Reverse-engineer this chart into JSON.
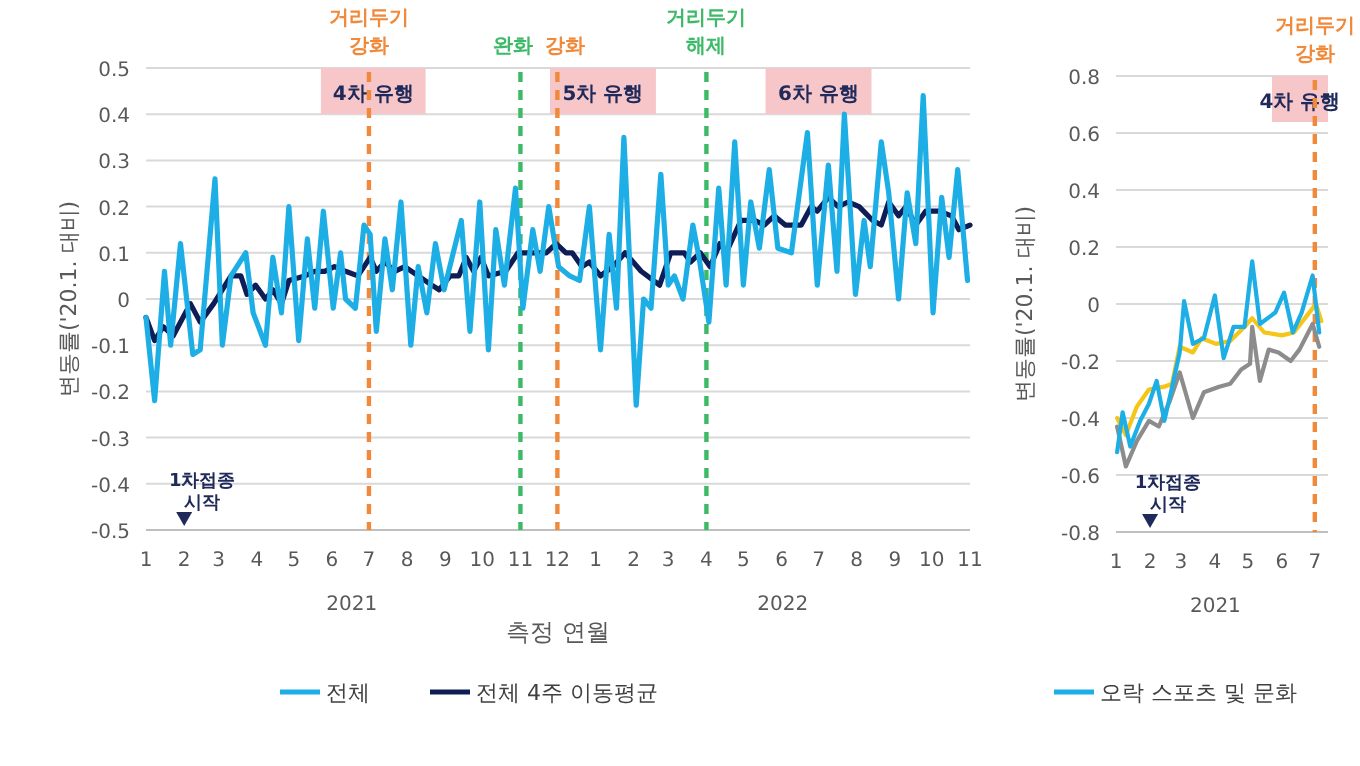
{
  "chart_data": [
    {
      "type": "line",
      "xlabel": "측정 연월",
      "ylabel": "변동률('20.1. 대비)",
      "xlim": [
        "2021-01-01",
        "2022-11-01"
      ],
      "ylim": [
        -0.5,
        0.5
      ],
      "xticks": [
        {
          "value": "2021-01",
          "label": "1"
        },
        {
          "value": "2021-02",
          "label": "2"
        },
        {
          "value": "2021-03",
          "label": "3"
        },
        {
          "value": "2021-04",
          "label": "4"
        },
        {
          "value": "2021-05",
          "label": "5"
        },
        {
          "value": "2021-06",
          "label": "6"
        },
        {
          "value": "2021-07",
          "label": "7"
        },
        {
          "value": "2021-08",
          "label": "8"
        },
        {
          "value": "2021-09",
          "label": "9"
        },
        {
          "value": "2021-10",
          "label": "10"
        },
        {
          "value": "2021-11",
          "label": "11"
        },
        {
          "value": "2021-12",
          "label": "12"
        },
        {
          "value": "2022-01",
          "label": "1"
        },
        {
          "value": "2022-02",
          "label": "2"
        },
        {
          "value": "2022-03",
          "label": "3"
        },
        {
          "value": "2022-04",
          "label": "4"
        },
        {
          "value": "2022-05",
          "label": "5"
        },
        {
          "value": "2022-06",
          "label": "6"
        },
        {
          "value": "2022-07",
          "label": "7"
        },
        {
          "value": "2022-08",
          "label": "8"
        },
        {
          "value": "2022-09",
          "label": "9"
        },
        {
          "value": "2022-10",
          "label": "10"
        },
        {
          "value": "2022-11",
          "label": "11"
        }
      ],
      "yticks": [
        -0.5,
        -0.4,
        -0.3,
        -0.2,
        -0.1,
        0,
        0.1,
        0.2,
        0.3,
        0.4,
        0.5
      ],
      "grid": "y",
      "legend": "bottom",
      "marker": "none",
      "line_style": "solid",
      "series": [
        {
          "name": "전체",
          "color": "#1eaee6",
          "x": [
            "2021-01-01",
            "2021-01-08",
            "2021-01-16",
            "2021-01-21",
            "2021-01-29",
            "2021-02-08",
            "2021-02-14",
            "2021-02-26",
            "2021-03-04",
            "2021-03-11",
            "2021-03-23",
            "2021-03-29",
            "2021-04-08",
            "2021-04-14",
            "2021-04-21",
            "2021-04-27",
            "2021-05-05",
            "2021-05-12",
            "2021-05-18",
            "2021-05-25",
            "2021-06-02",
            "2021-06-08",
            "2021-06-12",
            "2021-06-20",
            "2021-06-27",
            "2021-07-02",
            "2021-07-07",
            "2021-07-14",
            "2021-07-20",
            "2021-07-27",
            "2021-08-04",
            "2021-08-10",
            "2021-08-17",
            "2021-08-24",
            "2021-08-31",
            "2021-09-14",
            "2021-09-21",
            "2021-09-29",
            "2021-10-06",
            "2021-10-12",
            "2021-10-19",
            "2021-10-28",
            "2021-11-03",
            "2021-11-11",
            "2021-11-17",
            "2021-11-24",
            "2021-12-02",
            "2021-12-11",
            "2021-12-19",
            "2021-12-27",
            "2022-01-05",
            "2022-01-12",
            "2022-01-18",
            "2022-01-24",
            "2022-02-03",
            "2022-02-09",
            "2022-02-15",
            "2022-02-23",
            "2022-03-01",
            "2022-03-06",
            "2022-03-13",
            "2022-03-21",
            "2022-03-26",
            "2022-04-03",
            "2022-04-11",
            "2022-04-17",
            "2022-04-24",
            "2022-05-01",
            "2022-05-07",
            "2022-05-14",
            "2022-05-22",
            "2022-05-29",
            "2022-06-09",
            "2022-06-22",
            "2022-06-30",
            "2022-07-09",
            "2022-07-16",
            "2022-07-22",
            "2022-07-31",
            "2022-08-07",
            "2022-08-12",
            "2022-08-21",
            "2022-08-27",
            "2022-09-04",
            "2022-09-11",
            "2022-09-18",
            "2022-09-24",
            "2022-10-02",
            "2022-10-09",
            "2022-10-15",
            "2022-10-22",
            "2022-10-30"
          ],
          "values": [
            -0.04,
            -0.22,
            0.06,
            -0.1,
            0.12,
            -0.12,
            -0.11,
            0.26,
            -0.1,
            0.05,
            0.1,
            -0.03,
            -0.1,
            0.09,
            -0.03,
            0.2,
            -0.09,
            0.13,
            -0.02,
            0.19,
            -0.02,
            0.1,
            0.0,
            -0.02,
            0.16,
            0.14,
            -0.07,
            0.13,
            0.02,
            0.21,
            -0.1,
            0.07,
            -0.03,
            0.12,
            0.02,
            0.17,
            -0.07,
            0.21,
            -0.11,
            0.15,
            0.03,
            0.24,
            -0.02,
            0.15,
            0.06,
            0.2,
            0.07,
            0.05,
            0.04,
            0.2,
            -0.11,
            0.14,
            -0.02,
            0.35,
            -0.23,
            0.0,
            -0.02,
            0.27,
            0.03,
            0.05,
            0.0,
            0.16,
            0.09,
            -0.05,
            0.24,
            0.03,
            0.34,
            0.03,
            0.21,
            0.11,
            0.28,
            0.11,
            0.1,
            0.36,
            0.03,
            0.29,
            0.06,
            0.4,
            0.01,
            0.17,
            0.07,
            0.34,
            0.23,
            0.0,
            0.23,
            0.12,
            0.44,
            -0.03,
            0.22,
            0.09,
            0.28,
            0.04
          ]
        },
        {
          "name": "전체 4주 이동평균",
          "color": "#0e1d55",
          "x": [
            "2021-01-01",
            "2021-01-08",
            "2021-01-15",
            "2021-01-23",
            "2021-02-06",
            "2021-02-14",
            "2021-02-25",
            "2021-03-11",
            "2021-03-19",
            "2021-03-24",
            "2021-03-31",
            "2021-04-08",
            "2021-04-14",
            "2021-04-21",
            "2021-04-27",
            "2021-05-10",
            "2021-05-18",
            "2021-05-26",
            "2021-06-03",
            "2021-06-12",
            "2021-06-22",
            "2021-07-02",
            "2021-07-07",
            "2021-07-14",
            "2021-07-22",
            "2021-07-30",
            "2021-08-10",
            "2021-08-21",
            "2021-08-27",
            "2021-09-05",
            "2021-09-12",
            "2021-09-18",
            "2021-09-24",
            "2021-09-30",
            "2021-10-06",
            "2021-10-20",
            "2021-10-30",
            "2021-11-22",
            "2021-11-30",
            "2021-12-08",
            "2021-12-13",
            "2021-12-21",
            "2021-12-27",
            "2022-01-05",
            "2022-01-15",
            "2022-01-25",
            "2022-02-07",
            "2022-02-22",
            "2022-03-03",
            "2022-03-14",
            "2022-03-19",
            "2022-03-27",
            "2022-04-04",
            "2022-04-12",
            "2022-04-17",
            "2022-04-29",
            "2022-05-10",
            "2022-05-18",
            "2022-05-26",
            "2022-06-04",
            "2022-06-17",
            "2022-06-25",
            "2022-06-30",
            "2022-07-09",
            "2022-07-17",
            "2022-07-25",
            "2022-08-03",
            "2022-08-14",
            "2022-08-21",
            "2022-08-27",
            "2022-09-04",
            "2022-09-10",
            "2022-09-18",
            "2022-09-26",
            "2022-10-07",
            "2022-10-17",
            "2022-10-23",
            "2022-11-01"
          ],
          "values": [
            -0.04,
            -0.09,
            -0.06,
            -0.08,
            -0.01,
            -0.05,
            -0.01,
            0.05,
            0.05,
            0.01,
            0.03,
            0.0,
            0.02,
            -0.01,
            0.04,
            0.05,
            0.06,
            0.06,
            0.07,
            0.06,
            0.05,
            0.09,
            0.06,
            0.08,
            0.06,
            0.07,
            0.05,
            0.03,
            0.02,
            0.05,
            0.05,
            0.09,
            0.06,
            0.09,
            0.05,
            0.06,
            0.1,
            0.1,
            0.12,
            0.1,
            0.1,
            0.07,
            0.08,
            0.05,
            0.07,
            0.1,
            0.06,
            0.03,
            0.1,
            0.1,
            0.08,
            0.1,
            0.07,
            0.12,
            0.1,
            0.17,
            0.17,
            0.16,
            0.18,
            0.16,
            0.16,
            0.2,
            0.19,
            0.22,
            0.2,
            0.21,
            0.2,
            0.17,
            0.16,
            0.21,
            0.18,
            0.2,
            0.16,
            0.19,
            0.19,
            0.18,
            0.15,
            0.16
          ]
        }
      ],
      "ref_lines": [
        {
          "axis": "x",
          "value": "2021-07-01",
          "label": "거리두기 강화",
          "color": "#f08a3a",
          "line_style": "dashed"
        },
        {
          "axis": "x",
          "value": "2021-11-01",
          "label": "완화",
          "color": "#3cba68",
          "line_style": "dashed"
        },
        {
          "axis": "x",
          "value": "2021-12-01",
          "label": "강화",
          "color": "#f08a3a",
          "line_style": "dashed"
        },
        {
          "axis": "x",
          "value": "2022-04-01",
          "label": "거리두기 해제",
          "color": "#3cba68",
          "line_style": "dashed"
        }
      ],
      "bands": [
        {
          "axis": "x",
          "from": "2021-05-23",
          "to": "2021-08-16",
          "label": "4차 유행",
          "color": "#f7c6c9"
        },
        {
          "axis": "x",
          "from": "2021-11-25",
          "to": "2022-02-19",
          "label": "5차 유행",
          "color": "#f7c6c9"
        },
        {
          "axis": "x",
          "from": "2022-05-19",
          "to": "2022-08-13",
          "label": "6차 유행",
          "color": "#f7c6c9"
        }
      ],
      "annotations": [
        "2021",
        "2022",
        "1차접종 시작"
      ]
    },
    {
      "type": "line",
      "ylabel": "변동률('20.1. 대비)",
      "xlim": [
        "2021-01-01",
        "2021-07-13"
      ],
      "ylim": [
        -0.8,
        0.8
      ],
      "xticks": [
        {
          "value": "2021-01",
          "label": "1"
        },
        {
          "value": "2021-02",
          "label": "2"
        },
        {
          "value": "2021-03",
          "label": "3"
        },
        {
          "value": "2021-04",
          "label": "4"
        },
        {
          "value": "2021-05",
          "label": "5"
        },
        {
          "value": "2021-06",
          "label": "6"
        },
        {
          "value": "2021-07",
          "label": "7"
        }
      ],
      "yticks": [
        -0.8,
        -0.6,
        -0.4,
        -0.2,
        0,
        0.2,
        0.4,
        0.6,
        0.8
      ],
      "grid": "y",
      "legend": "bottom",
      "marker": "none",
      "line_style": "solid",
      "series": [
        {
          "name": "오락 스포츠 및 문화",
          "color": "#1eaee6",
          "x": [
            "2021-01-02",
            "2021-01-07",
            "2021-01-14",
            "2021-01-23",
            "2021-01-31",
            "2021-02-07",
            "2021-02-14",
            "2021-02-20",
            "2021-02-28",
            "2021-03-04",
            "2021-03-12",
            "2021-03-22",
            "2021-04-01",
            "2021-04-09",
            "2021-04-18",
            "2021-04-28",
            "2021-05-05",
            "2021-05-12",
            "2021-05-26",
            "2021-06-03",
            "2021-06-11",
            "2021-06-19",
            "2021-06-29",
            "2021-07-05"
          ],
          "values": [
            -0.52,
            -0.38,
            -0.5,
            -0.41,
            -0.35,
            -0.27,
            -0.41,
            -0.31,
            -0.17,
            0.01,
            -0.14,
            -0.12,
            0.03,
            -0.19,
            -0.08,
            -0.08,
            0.15,
            -0.07,
            -0.03,
            0.04,
            -0.1,
            -0.03,
            0.1,
            -0.1
          ]
        },
        {
          "color": "#f5c518",
          "x": [
            "2021-01-02",
            "2021-01-10",
            "2021-01-20",
            "2021-01-31",
            "2021-02-14",
            "2021-02-21",
            "2021-02-28",
            "2021-03-12",
            "2021-03-20",
            "2021-04-02",
            "2021-04-15",
            "2021-04-28",
            "2021-05-05",
            "2021-05-16",
            "2021-06-01",
            "2021-06-12",
            "2021-06-24",
            "2021-07-02",
            "2021-07-07"
          ],
          "values": [
            -0.4,
            -0.46,
            -0.36,
            -0.3,
            -0.29,
            -0.28,
            -0.15,
            -0.17,
            -0.12,
            -0.14,
            -0.13,
            -0.08,
            -0.05,
            -0.1,
            -0.11,
            -0.1,
            -0.04,
            0.0,
            -0.06
          ]
        },
        {
          "color": "#8c8c8c",
          "x": [
            "2021-01-02",
            "2021-01-10",
            "2021-01-20",
            "2021-01-31",
            "2021-02-09",
            "2021-02-19",
            "2021-02-28",
            "2021-03-12",
            "2021-03-22",
            "2021-04-05",
            "2021-04-15",
            "2021-04-25",
            "2021-05-03",
            "2021-05-05",
            "2021-05-12",
            "2021-05-20",
            "2021-05-29",
            "2021-06-09",
            "2021-06-17",
            "2021-06-29",
            "2021-07-05"
          ],
          "values": [
            -0.43,
            -0.57,
            -0.48,
            -0.41,
            -0.43,
            -0.34,
            -0.24,
            -0.4,
            -0.31,
            -0.29,
            -0.28,
            -0.23,
            -0.21,
            -0.08,
            -0.27,
            -0.16,
            -0.17,
            -0.2,
            -0.16,
            -0.07,
            -0.15
          ]
        }
      ],
      "ref_lines": [
        {
          "axis": "x",
          "value": "2021-07-01",
          "label": "거리두기 강화",
          "color": "#f08a3a",
          "line_style": "dashed"
        }
      ],
      "bands": [
        {
          "axis": "x",
          "from": "2021-05-23",
          "to": "2021-07-13",
          "label": "4차 유행",
          "color": "#f7c6c9"
        }
      ],
      "annotations": [
        "2021",
        "1차접종 시작"
      ]
    }
  ]
}
